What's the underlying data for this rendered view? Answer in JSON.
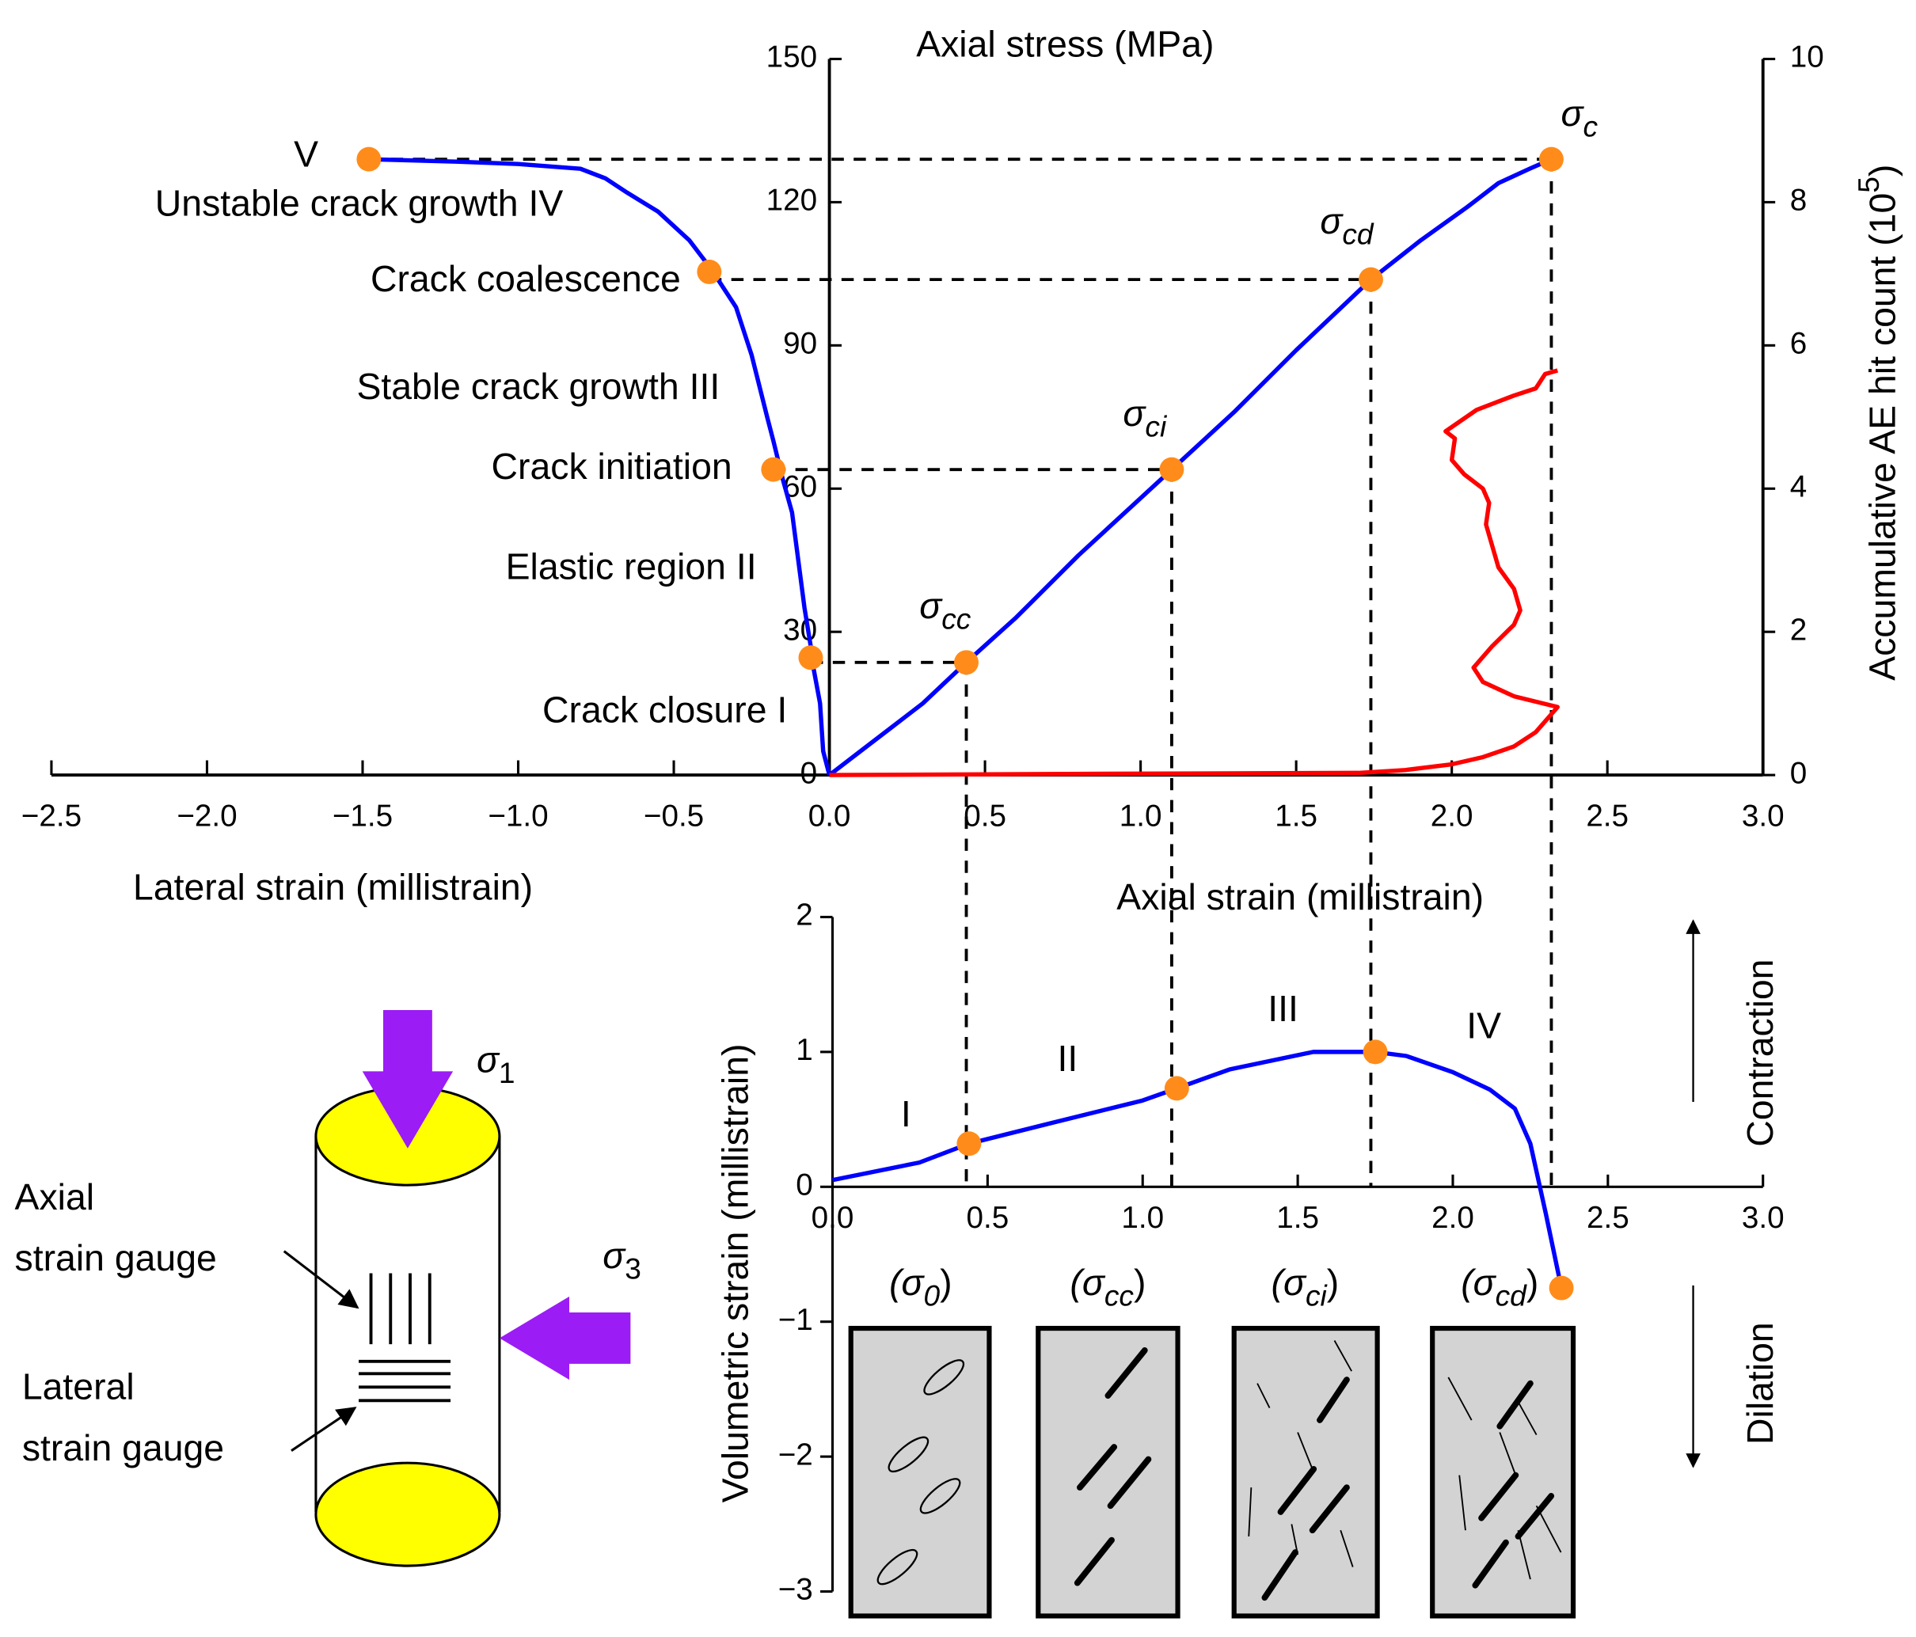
{
  "chart_data": [
    {
      "type": "line",
      "ylabel": "Axial stress (MPa)",
      "xlabel_left": "Lateral strain (millistrain)",
      "xlabel_right": "Axial strain (millistrain)",
      "y2label": {
        "text": "Accumulative AE hit count (10",
        "sup": "5",
        "end": ")"
      },
      "xlim": [
        -2.5,
        3.0
      ],
      "xticks": [
        {
          "value": -2.5,
          "label": "−2.5"
        },
        {
          "value": -2.0,
          "label": "−2.0"
        },
        {
          "value": -1.5,
          "label": "−1.5"
        },
        {
          "value": -1.0,
          "label": "−1.0"
        },
        {
          "value": -0.5,
          "label": "−0.5"
        },
        {
          "value": 0,
          "label": "0.0"
        },
        0.5,
        {
          "value": 1.0,
          "label": "1.0"
        },
        1.5,
        {
          "value": 2.0,
          "label": "2.0"
        },
        2.5,
        {
          "value": 3.0,
          "label": "3.0"
        }
      ],
      "ylim": [
        0,
        150
      ],
      "yticks": [
        0,
        30,
        60,
        90,
        120,
        150
      ],
      "y2lim": [
        0,
        10
      ],
      "y2ticks": [
        0,
        2,
        4,
        6,
        8,
        10
      ],
      "series": [
        {
          "color": "#0000ff",
          "x": [
            0,
            -0.02,
            -0.03,
            -0.05,
            -0.06,
            -0.08,
            -0.1,
            -0.12,
            -0.15,
            -0.18,
            -0.2,
            -0.25,
            -0.3,
            -0.38,
            -0.45,
            -0.55,
            -0.65,
            -0.72,
            -0.8,
            -1.0,
            -1.2,
            -1.48
          ],
          "values": [
            0,
            5,
            15,
            22,
            27,
            35,
            45,
            55,
            62,
            70,
            75,
            88,
            98,
            106,
            112,
            118,
            122,
            125,
            127,
            128,
            128.5,
            129
          ]
        },
        {
          "color": "#0000ff",
          "x": [
            0,
            0.1,
            0.2,
            0.3,
            0.44,
            0.6,
            0.8,
            1.1,
            1.3,
            1.5,
            1.74,
            1.9,
            2.05,
            2.15,
            2.25,
            2.32
          ],
          "values": [
            0,
            5,
            10,
            15,
            23.6,
            33,
            46,
            64,
            76,
            89,
            103.8,
            112,
            119,
            124,
            127,
            129
          ]
        },
        {
          "color": "#ff0000",
          "axis": "y2",
          "x": [
            0,
            1.0,
            1.7,
            1.85,
            2.0,
            2.1,
            2.2,
            2.27,
            2.32,
            2.34,
            2.2,
            2.1,
            2.07,
            2.13,
            2.2,
            2.22,
            2.2,
            2.15,
            2.13,
            2.11,
            2.12,
            2.1,
            2.04,
            2.0,
            2.01,
            1.98,
            2.08,
            2.2,
            2.27,
            2.3,
            2.34
          ],
          "values": [
            0,
            0.02,
            0.03,
            0.07,
            0.15,
            0.25,
            0.4,
            0.6,
            0.85,
            0.95,
            1.1,
            1.3,
            1.5,
            1.8,
            2.1,
            2.3,
            2.6,
            2.9,
            3.2,
            3.5,
            3.8,
            4.0,
            4.2,
            4.4,
            4.7,
            4.8,
            5.1,
            5.3,
            5.4,
            5.6,
            5.65
          ]
        }
      ],
      "points": {
        "color": "#ff8c1a",
        "lateral": {
          "x": [
            -1.48,
            -0.386,
            -0.18,
            -0.06
          ],
          "values": [
            129,
            105.4,
            64,
            24.6
          ]
        },
        "axial": {
          "x": [
            2.32,
            1.74,
            1.1,
            0.44
          ],
          "values": [
            129,
            103.8,
            64,
            23.6
          ],
          "labels": [
            {
              "text": "σ",
              "sub": "c"
            },
            {
              "text": "σ",
              "sub": "cd"
            },
            {
              "text": "σ",
              "sub": "ci"
            },
            {
              "text": "σ",
              "sub": "cc"
            }
          ]
        }
      },
      "annotations": [
        "V",
        "Unstable crack growth IV",
        "Crack coalescence",
        "Stable crack growth III",
        "Crack initiation",
        "Elastic region II",
        "Crack closure I"
      ]
    },
    {
      "type": "line",
      "ylabel": "Volumetric strain (millistrain)",
      "xlim": [
        0,
        3.0
      ],
      "xticks": [
        {
          "value": 0,
          "label": "0.0"
        },
        0.5,
        {
          "value": 1.0,
          "label": "1.0"
        },
        1.5,
        {
          "value": 2.0,
          "label": "2.0"
        },
        2.5,
        {
          "value": 3.0,
          "label": "3.0"
        }
      ],
      "ylim": [
        -3,
        2
      ],
      "yticks": [
        {
          "value": -3,
          "label": "−3"
        },
        {
          "value": -2,
          "label": "−2"
        },
        {
          "value": -1,
          "label": "−1"
        },
        0,
        1,
        2
      ],
      "series": [
        {
          "color": "#0000ff",
          "x": [
            0,
            0.28,
            0.44,
            0.7,
            1.0,
            1.11,
            1.28,
            1.55,
            1.75,
            1.85,
            2.0,
            2.12,
            2.2,
            2.25,
            2.3,
            2.35
          ],
          "values": [
            0.05,
            0.18,
            0.32,
            0.47,
            0.64,
            0.73,
            0.87,
            1.0,
            1.0,
            0.97,
            0.85,
            0.72,
            0.58,
            0.32,
            -0.2,
            -0.75
          ]
        }
      ],
      "points": {
        "color": "#ff8c1a",
        "x": [
          0.44,
          1.11,
          1.75,
          2.35
        ],
        "values": [
          0.32,
          0.73,
          1.0,
          -0.75
        ]
      },
      "annotations": [
        "I",
        "II",
        "III",
        "IV",
        "Contraction",
        "Dilation"
      ]
    }
  ],
  "diagram": {
    "sigma1": {
      "text": "σ",
      "sub": "1"
    },
    "sigma3": {
      "text": "σ",
      "sub": "3"
    },
    "axial_gauge": [
      "Axial",
      "strain gauge"
    ],
    "lateral_gauge": [
      "Lateral",
      "strain gauge"
    ],
    "crack_states": [
      {
        "text": "(σ",
        "sub": "0",
        "end": ")"
      },
      {
        "text": "(σ",
        "sub": "cc",
        "end": ")"
      },
      {
        "text": "(σ",
        "sub": "ci",
        "end": ")"
      },
      {
        "text": "(σ",
        "sub": "cd",
        "end": ")"
      }
    ]
  }
}
